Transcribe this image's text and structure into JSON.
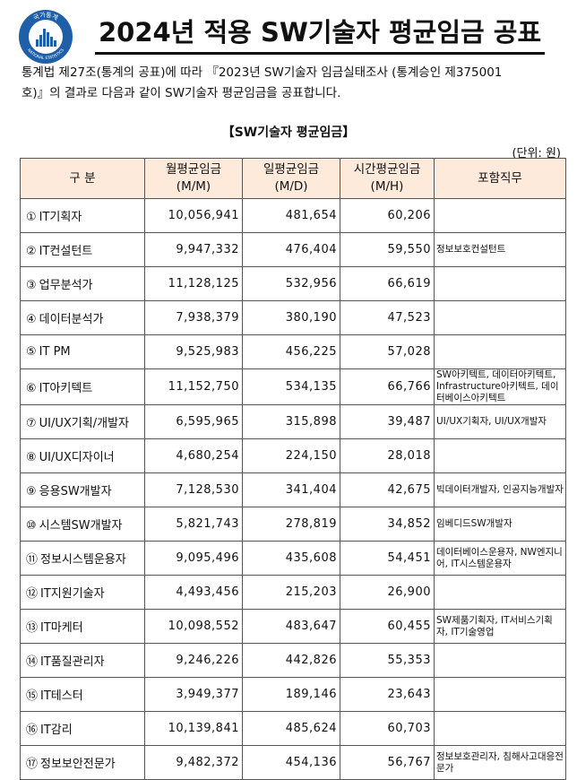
{
  "header": {
    "logo_text_top": "국가통계",
    "logo_text_bottom": "NATIONAL STATISTICS",
    "title": "2024년 적용 SW기술자 평균임금 공표"
  },
  "intro": {
    "line1": "통계법 제27조(통계의 공표)에 따라 『2023년 SW기술자 임금실태조사 (통계승인 제375001",
    "line2": "호)』의 결과로 다음과 같이 SW기술자 평균임금을 공표합니다."
  },
  "table_title": "【SW기술자 평균임금】",
  "unit": "(단위: 원)",
  "columns": {
    "category": "구 분",
    "monthly_1": "월평균임금",
    "monthly_2": "(M/M)",
    "daily_1": "일평균임금",
    "daily_2": "(M/D)",
    "hourly_1": "시간평균임금",
    "hourly_2": "(M/H)",
    "jobs": "포함직무"
  },
  "rows": [
    {
      "no": "①",
      "name": "IT기획자",
      "monthly": "10,056,941",
      "daily": "481,654",
      "hourly": "60,206",
      "jobs": ""
    },
    {
      "no": "②",
      "name": "IT컨설턴트",
      "monthly": "9,947,332",
      "daily": "476,404",
      "hourly": "59,550",
      "jobs": "정보보호컨설턴트"
    },
    {
      "no": "③",
      "name": "업무분석가",
      "monthly": "11,128,125",
      "daily": "532,956",
      "hourly": "66,619",
      "jobs": ""
    },
    {
      "no": "④",
      "name": "데이터분석가",
      "monthly": "7,938,379",
      "daily": "380,190",
      "hourly": "47,523",
      "jobs": ""
    },
    {
      "no": "⑤",
      "name": "IT PM",
      "monthly": "9,525,983",
      "daily": "456,225",
      "hourly": "57,028",
      "jobs": ""
    },
    {
      "no": "⑥",
      "name": "IT아키텍트",
      "monthly": "11,152,750",
      "daily": "534,135",
      "hourly": "66,766",
      "jobs": "SW아키텍트, 데이터아키텍트, Infrastructure아키텍트, 데이터베이스아키텍트"
    },
    {
      "no": "⑦",
      "name": "UI/UX기획/개발자",
      "monthly": "6,595,965",
      "daily": "315,898",
      "hourly": "39,487",
      "jobs": "UI/UX기획자, UI/UX개발자"
    },
    {
      "no": "⑧",
      "name": "UI/UX디자이너",
      "monthly": "4,680,254",
      "daily": "224,150",
      "hourly": "28,018",
      "jobs": ""
    },
    {
      "no": "⑨",
      "name": "응용SW개발자",
      "monthly": "7,128,530",
      "daily": "341,404",
      "hourly": "42,675",
      "jobs": "빅데이터개발자, 인공지능개발자"
    },
    {
      "no": "⑩",
      "name": "시스템SW개발자",
      "monthly": "5,821,743",
      "daily": "278,819",
      "hourly": "34,852",
      "jobs": "임베디드SW개발자"
    },
    {
      "no": "⑪",
      "name": "정보시스템운용자",
      "monthly": "9,095,496",
      "daily": "435,608",
      "hourly": "54,451",
      "jobs": "데이터베이스운용자, NW엔지니어, IT시스템운용자"
    },
    {
      "no": "⑫",
      "name": "IT지원기술자",
      "monthly": "4,493,456",
      "daily": "215,203",
      "hourly": "26,900",
      "jobs": ""
    },
    {
      "no": "⑬",
      "name": "IT마케터",
      "monthly": "10,098,552",
      "daily": "483,647",
      "hourly": "60,455",
      "jobs": "SW제품기획자, IT서비스기획자, IT기술영업"
    },
    {
      "no": "⑭",
      "name": "IT품질관리자",
      "monthly": "9,246,226",
      "daily": "442,826",
      "hourly": "55,353",
      "jobs": ""
    },
    {
      "no": "⑮",
      "name": "IT테스터",
      "monthly": "3,949,377",
      "daily": "189,146",
      "hourly": "23,643",
      "jobs": ""
    },
    {
      "no": "⑯",
      "name": "IT감리",
      "monthly": "10,139,841",
      "daily": "485,624",
      "hourly": "60,703",
      "jobs": ""
    },
    {
      "no": "⑰",
      "name": "정보보안전문가",
      "monthly": "9,482,372",
      "daily": "454,136",
      "hourly": "56,767",
      "jobs": "정보보호관리자, 침해사고대응전문가"
    }
  ]
}
